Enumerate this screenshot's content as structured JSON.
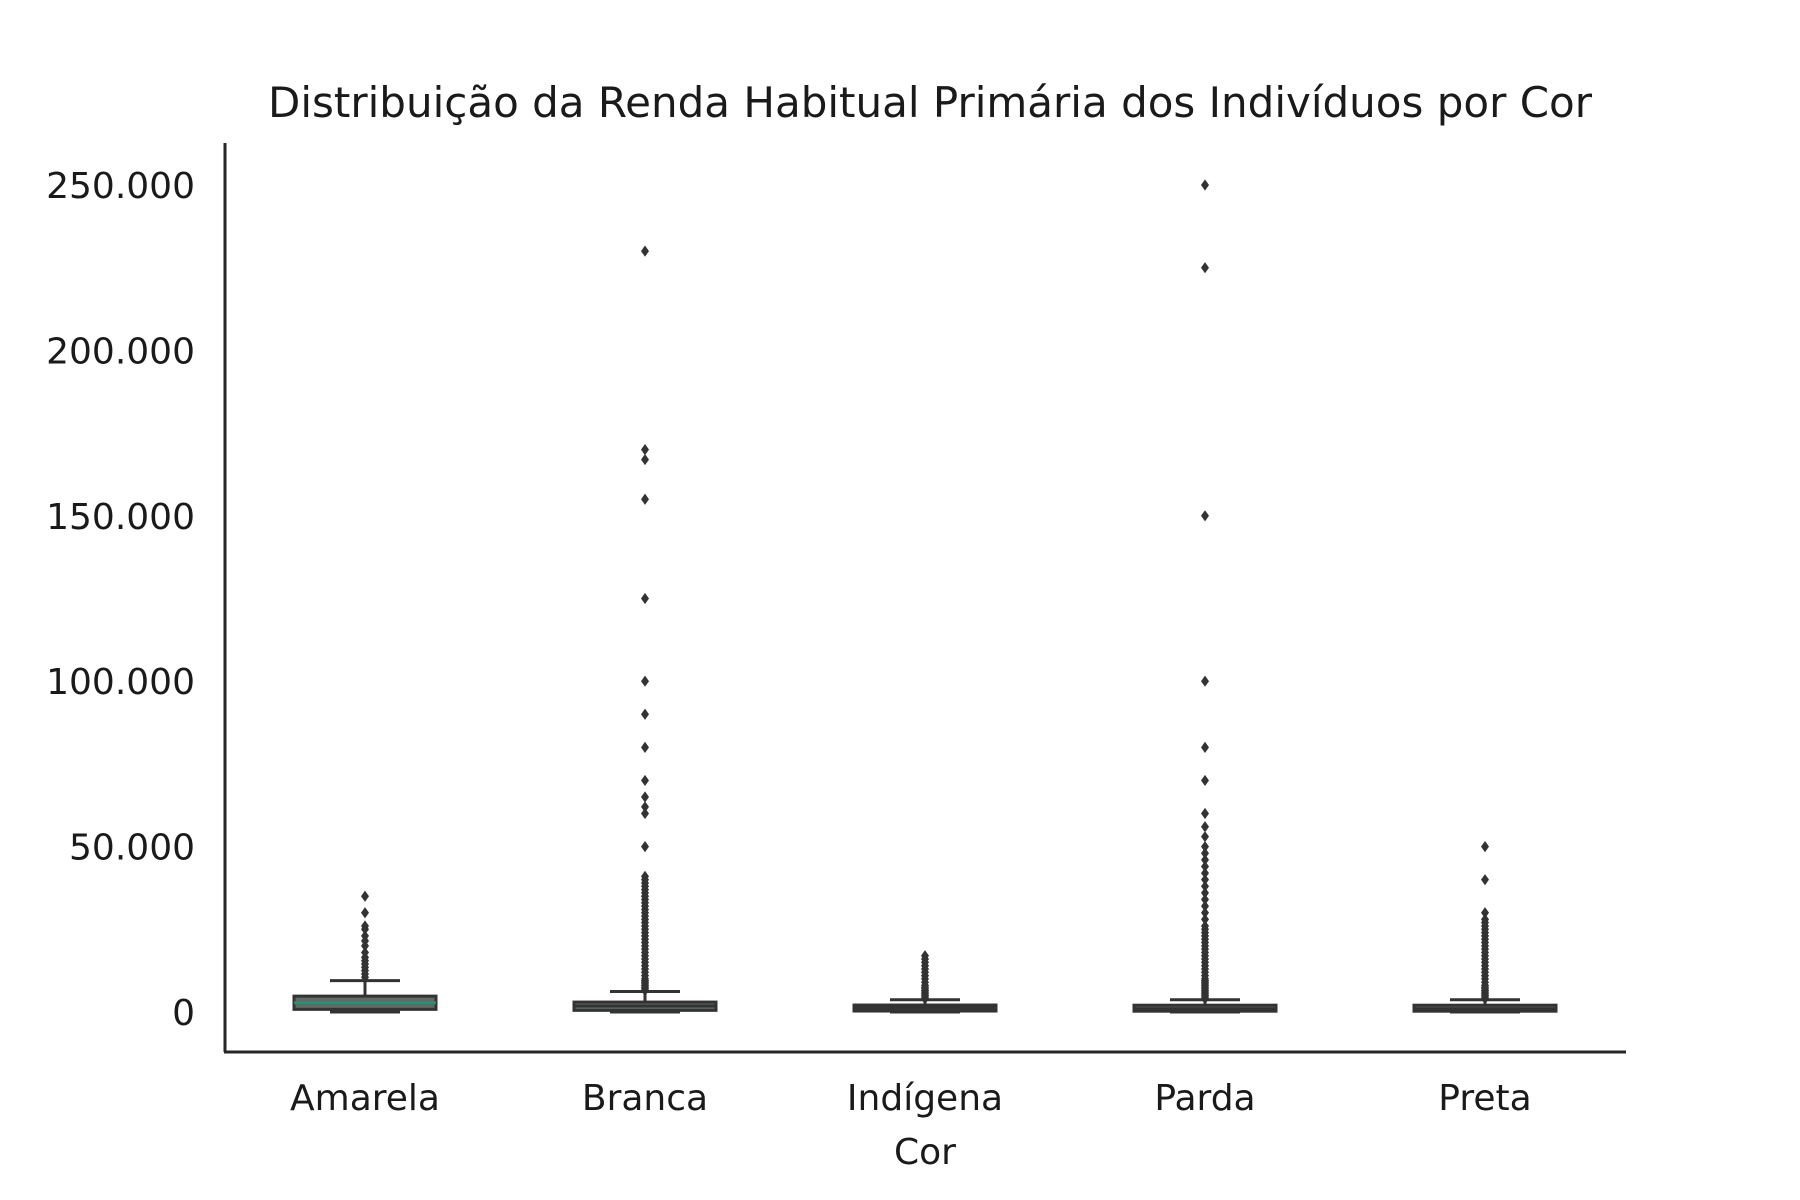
{
  "chart_data": {
    "type": "box",
    "title": "Distribuição da Renda Habitual Primária dos Indivíduos por Cor",
    "xlabel": "Cor",
    "ylabel": "",
    "ylim": [
      -12000,
      262000
    ],
    "yticks": [
      0,
      50000,
      100000,
      150000,
      200000,
      250000
    ],
    "ytick_labels": [
      "0",
      "50.000",
      "100.000",
      "150.000",
      "200.000",
      "250.000"
    ],
    "grid": false,
    "colors": {
      "axis": "#262626",
      "box_edge": "#333333",
      "box_fill": "#5f6b63",
      "median_amarela": "#2f8a78",
      "outlier": "#333333"
    },
    "categories": [
      "Amarela",
      "Branca",
      "Indígena",
      "Parda",
      "Preta"
    ],
    "boxes": [
      {
        "category": "Amarela",
        "whisker_low": 0,
        "q1": 800,
        "median": 2800,
        "q3": 4800,
        "whisker_high": 9500,
        "outliers": [
          10500,
          11500,
          12500,
          13500,
          14500,
          15500,
          16500,
          18000,
          20000,
          21500,
          23000,
          25000,
          26000,
          30000,
          35000
        ]
      },
      {
        "category": "Branca",
        "whisker_low": 0,
        "q1": 500,
        "median": 1800,
        "q3": 3000,
        "whisker_high": 6200,
        "outliers": [
          6500,
          7000,
          7500,
          8000,
          8500,
          9000,
          9500,
          10000,
          11000,
          12000,
          13000,
          14000,
          15000,
          16000,
          17000,
          18000,
          19000,
          20000,
          21000,
          22000,
          23000,
          24000,
          25000,
          26000,
          27000,
          28000,
          29000,
          30000,
          31000,
          32000,
          33000,
          34000,
          35000,
          36000,
          37000,
          38000,
          39000,
          40000,
          41000,
          50000,
          60000,
          62000,
          65000,
          70000,
          80000,
          90000,
          100000,
          125000,
          155000,
          167000,
          170000,
          230000
        ]
      },
      {
        "category": "Indígena",
        "whisker_low": 0,
        "q1": 400,
        "median": 1200,
        "q3": 2000,
        "whisker_high": 3700,
        "outliers": [
          4000,
          4500,
          5000,
          5500,
          6000,
          6500,
          7000,
          7500,
          8000,
          9000,
          10000,
          11000,
          12000,
          13000,
          14000,
          15000,
          16000,
          17000
        ]
      },
      {
        "category": "Parda",
        "whisker_low": 0,
        "q1": 300,
        "median": 1000,
        "q3": 2000,
        "whisker_high": 3700,
        "outliers": [
          4000,
          4500,
          5000,
          5500,
          6000,
          6500,
          7000,
          7500,
          8000,
          8500,
          9000,
          9500,
          10000,
          11000,
          12000,
          13000,
          14000,
          15000,
          16000,
          17000,
          18000,
          19000,
          20000,
          21000,
          22000,
          23000,
          24000,
          25000,
          26000,
          28000,
          30000,
          32000,
          34000,
          36000,
          38000,
          40000,
          42000,
          44000,
          46000,
          48000,
          50000,
          53000,
          56000,
          60000,
          70000,
          80000,
          100000,
          150000,
          225000,
          250000
        ]
      },
      {
        "category": "Preta",
        "whisker_low": 0,
        "q1": 300,
        "median": 1000,
        "q3": 2000,
        "whisker_high": 3700,
        "outliers": [
          4000,
          4500,
          5000,
          5500,
          6000,
          6500,
          7000,
          7500,
          8000,
          9000,
          10000,
          11000,
          12000,
          13000,
          14000,
          15000,
          16000,
          17000,
          18000,
          19000,
          20000,
          21000,
          22000,
          23000,
          24000,
          25000,
          26000,
          27000,
          28000,
          30000,
          40000,
          50000
        ]
      }
    ]
  }
}
